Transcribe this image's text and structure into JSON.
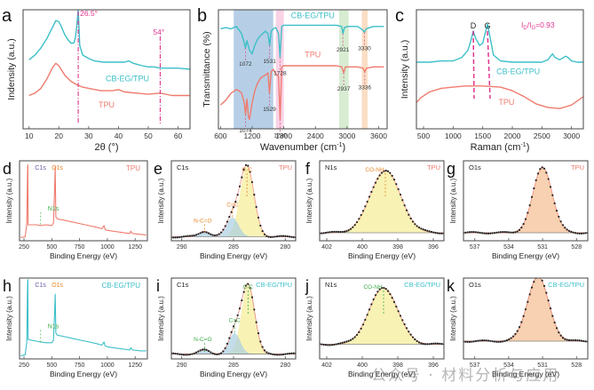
{
  "figure": {
    "watermark": "公众号 · 材料分析与应用"
  },
  "colors": {
    "cbeg": "#3cbfc8",
    "tpu": "#ef7b6e",
    "magenta": "#e0358f",
    "orange": "#e8892a",
    "green": "#3fae49",
    "purple": "#6a5aa8",
    "frame": "#555555",
    "fill_yellow": "#f7f0a8",
    "fill_blue": "#a9cfe3",
    "fill_peach": "#f6c9a4"
  },
  "chart_data": [
    {
      "panel": "a",
      "type": "line",
      "title": "",
      "xlabel": "2θ (°)",
      "ylabel": "Indensity (a.u.)",
      "xlim": [
        8,
        64
      ],
      "xticks": [
        10,
        20,
        30,
        40,
        50,
        60
      ],
      "series": [
        {
          "name": "CB-EG/TPU",
          "color_key": "cbeg",
          "x": [
            10,
            12,
            14,
            16,
            18,
            19,
            20,
            21,
            22,
            23,
            24,
            25,
            25.5,
            26,
            26.5,
            27,
            28,
            30,
            32,
            35,
            38,
            40,
            42,
            43.5,
            45,
            48,
            50,
            52,
            54,
            56,
            58,
            60,
            62,
            64
          ],
          "y": [
            0.58,
            0.62,
            0.68,
            0.76,
            0.86,
            0.91,
            0.9,
            0.85,
            0.79,
            0.75,
            0.72,
            0.72,
            0.76,
            0.86,
            1.0,
            0.7,
            0.62,
            0.59,
            0.57,
            0.56,
            0.56,
            0.56,
            0.56,
            0.57,
            0.55,
            0.53,
            0.52,
            0.52,
            0.51,
            0.51,
            0.51,
            0.51,
            0.505,
            0.5
          ]
        },
        {
          "name": "TPU",
          "color_key": "tpu",
          "x": [
            10,
            12,
            14,
            16,
            18,
            19,
            20,
            21,
            22,
            24,
            26,
            28,
            30,
            34,
            38,
            40,
            42,
            46,
            50,
            54,
            58,
            60,
            64
          ],
          "y": [
            0.28,
            0.3,
            0.34,
            0.42,
            0.52,
            0.55,
            0.53,
            0.49,
            0.45,
            0.4,
            0.37,
            0.35,
            0.34,
            0.32,
            0.32,
            0.33,
            0.31,
            0.3,
            0.29,
            0.3,
            0.28,
            0.28,
            0.28
          ]
        }
      ],
      "markers": [
        {
          "x": 26.5,
          "label": "26.5°"
        },
        {
          "x": 54,
          "label": "54°"
        }
      ],
      "series_labels": [
        {
          "text": "CB-EG/TPU",
          "color_key": "cbeg",
          "x": 43,
          "y": 0.4
        },
        {
          "text": "TPU",
          "color_key": "tpu",
          "x": 36,
          "y": 0.18
        }
      ]
    },
    {
      "panel": "b",
      "type": "line",
      "xlabel": "Wavenumber (cm⁻¹)",
      "ylabel": "Transmittance (%)",
      "xlim": [
        560,
        3760
      ],
      "xticks": [
        600,
        1200,
        1800,
        2400,
        3000,
        3600
      ],
      "bands": [
        {
          "from": 850,
          "to": 1600,
          "color": "#9dbfde"
        },
        {
          "from": 1650,
          "to": 1800,
          "color": "#f7c3de"
        },
        {
          "from": 2850,
          "to": 3030,
          "color": "#c9e6c1"
        },
        {
          "from": 3280,
          "to": 3390,
          "color": "#f9d3b1"
        }
      ],
      "series": [
        {
          "name": "CB-EG/TPU",
          "color_key": "cbeg",
          "x": [
            600,
            700,
            800,
            900,
            950,
            1000,
            1050,
            1072,
            1100,
            1150,
            1200,
            1250,
            1300,
            1350,
            1400,
            1450,
            1500,
            1531,
            1560,
            1600,
            1650,
            1700,
            1728,
            1760,
            1800,
            2000,
            2400,
            2800,
            2900,
            2921,
            2950,
            3000,
            3200,
            3300,
            3330,
            3360,
            3500,
            3700
          ],
          "y": [
            0.84,
            0.85,
            0.84,
            0.86,
            0.83,
            0.8,
            0.72,
            0.68,
            0.74,
            0.66,
            0.63,
            0.7,
            0.75,
            0.78,
            0.8,
            0.82,
            0.8,
            0.7,
            0.82,
            0.84,
            0.85,
            0.8,
            0.6,
            0.86,
            0.87,
            0.87,
            0.87,
            0.87,
            0.86,
            0.8,
            0.85,
            0.86,
            0.86,
            0.83,
            0.81,
            0.84,
            0.86,
            0.86
          ]
        },
        {
          "name": "TPU",
          "color_key": "tpu",
          "x": [
            600,
            700,
            800,
            900,
            950,
            1000,
            1050,
            1074,
            1100,
            1130,
            1150,
            1200,
            1250,
            1300,
            1350,
            1400,
            1450,
            1500,
            1529,
            1560,
            1600,
            1650,
            1700,
            1730,
            1760,
            1800,
            2000,
            2400,
            2800,
            2900,
            2937,
            2970,
            3000,
            3200,
            3300,
            3336,
            3370,
            3500,
            3700
          ],
          "y": [
            0.2,
            0.24,
            0.3,
            0.33,
            0.32,
            0.3,
            0.22,
            0.12,
            0.25,
            0.1,
            0.08,
            0.22,
            0.32,
            0.38,
            0.42,
            0.44,
            0.45,
            0.47,
            0.3,
            0.48,
            0.5,
            0.46,
            0.44,
            0.08,
            0.52,
            0.53,
            0.53,
            0.53,
            0.53,
            0.52,
            0.47,
            0.52,
            0.52,
            0.52,
            0.51,
            0.48,
            0.51,
            0.52,
            0.52
          ]
        }
      ],
      "peak_labels": [
        {
          "x": 1072,
          "text": "1072",
          "series": 0
        },
        {
          "x": 1531,
          "text": "1531",
          "series": 0
        },
        {
          "x": 1728,
          "text": "1728",
          "series": 0
        },
        {
          "x": 2921,
          "text": "2921",
          "series": 0
        },
        {
          "x": 3330,
          "text": "3330",
          "series": 0
        },
        {
          "x": 1074,
          "text": "1074",
          "series": 1
        },
        {
          "x": 1529,
          "text": "1529",
          "series": 1
        },
        {
          "x": 1730,
          "text": "1730",
          "series": 1
        },
        {
          "x": 2937,
          "text": "2937",
          "series": 1
        },
        {
          "x": 3336,
          "text": "3336",
          "series": 1
        }
      ],
      "series_labels": [
        {
          "text": "CB-EG/TPU",
          "color_key": "cbeg",
          "x": 2350,
          "y": 0.93
        },
        {
          "text": "TPU",
          "color_key": "tpu",
          "x": 2350,
          "y": 0.6
        }
      ]
    },
    {
      "panel": "c",
      "type": "line",
      "xlabel": "Raman (cm⁻¹)",
      "ylabel": "Intensity (a.u.)",
      "xlim": [
        380,
        3200
      ],
      "xticks": [
        500,
        1000,
        1500,
        2000,
        2500,
        3000
      ],
      "annotation": "I_D/I_G=0.93",
      "series": [
        {
          "name": "CB-EG/TPU",
          "color_key": "cbeg",
          "x": [
            380,
            600,
            800,
            1000,
            1150,
            1250,
            1300,
            1340,
            1380,
            1450,
            1500,
            1550,
            1580,
            1620,
            1680,
            1800,
            2000,
            2300,
            2500,
            2600,
            2680,
            2720,
            2800,
            2900,
            2940,
            3000,
            3100,
            3200
          ],
          "y": [
            0.56,
            0.56,
            0.57,
            0.57,
            0.6,
            0.66,
            0.74,
            0.82,
            0.76,
            0.7,
            0.72,
            0.82,
            0.88,
            0.78,
            0.62,
            0.57,
            0.56,
            0.56,
            0.56,
            0.58,
            0.63,
            0.6,
            0.58,
            0.61,
            0.6,
            0.57,
            0.56,
            0.56
          ]
        },
        {
          "name": "TPU",
          "color_key": "tpu",
          "x": [
            380,
            450,
            600,
            800,
            1000,
            1200,
            1500,
            1800,
            2000,
            2200,
            2400,
            2600,
            2800,
            3000,
            3200
          ],
          "y": [
            0.22,
            0.26,
            0.31,
            0.34,
            0.35,
            0.36,
            0.36,
            0.35,
            0.32,
            0.27,
            0.21,
            0.18,
            0.17,
            0.2,
            0.27
          ]
        }
      ],
      "peaks": [
        {
          "x": 1340,
          "label": "D"
        },
        {
          "x": 1580,
          "label": "G"
        }
      ],
      "series_labels": [
        {
          "text": "CB-EG/TPU",
          "color_key": "cbeg",
          "x": 2100,
          "y": 0.46
        },
        {
          "text": "TPU",
          "color_key": "tpu",
          "x": 1900,
          "y": 0.2
        }
      ]
    },
    {
      "panel": "d",
      "type": "line",
      "xlabel": "Binding Energy (eV)",
      "ylabel": "Intensity (a.u.)",
      "xlim": [
        210,
        1360
      ],
      "xticks": [
        250,
        500,
        750,
        1000,
        1250
      ],
      "sample": "TPU",
      "sample_color_key": "tpu",
      "series": [
        {
          "name": "TPU",
          "color_key": "tpu",
          "x": [
            220,
            260,
            275,
            283,
            285,
            287,
            295,
            320,
            360,
            400,
            450,
            500,
            515,
            525,
            531,
            537,
            545,
            560,
            600,
            700,
            800,
            900,
            950,
            970,
            980,
            1000,
            1100,
            1200,
            1210,
            1220,
            1230,
            1300,
            1350
          ],
          "y": [
            0.04,
            0.05,
            0.2,
            0.92,
            0.95,
            0.2,
            0.2,
            0.2,
            0.2,
            0.19,
            0.2,
            0.19,
            0.22,
            0.6,
            0.92,
            0.3,
            0.28,
            0.27,
            0.26,
            0.23,
            0.2,
            0.17,
            0.15,
            0.19,
            0.14,
            0.13,
            0.11,
            0.09,
            0.12,
            0.1,
            0.09,
            0.08,
            0.07
          ]
        }
      ],
      "peak_labels": [
        {
          "text": "C1s",
          "x": 285,
          "color_key": "purple"
        },
        {
          "text": "O1s",
          "x": 531,
          "color_key": "orange"
        },
        {
          "text": "N1s",
          "x": 400,
          "color_key": "green"
        }
      ]
    },
    {
      "panel": "e",
      "type": "area",
      "xlabel": "Binding Energy (eV)",
      "ylabel": "Intensity (a.u.)",
      "xlim": [
        291,
        279
      ],
      "xticks": [
        290,
        285,
        280
      ],
      "region": "C1s",
      "sample": "TPU",
      "sample_color_key": "tpu",
      "label_color_key": "orange",
      "components": [
        {
          "name": "C-C",
          "center": 283.7,
          "fwhm": 1.6,
          "amp": 0.88,
          "fill_key": "fill_yellow"
        },
        {
          "name": "C=C",
          "center": 285.1,
          "fwhm": 1.4,
          "amp": 0.24,
          "fill_key": "fill_blue"
        },
        {
          "name": "N-C=O",
          "center": 287.8,
          "fwhm": 1.2,
          "amp": 0.07,
          "fill_key": "fill_blue"
        }
      ],
      "baseline": 0.05
    },
    {
      "panel": "f",
      "type": "area",
      "xlabel": "Binding Energy (eV)",
      "ylabel": "Intensity (a.u.)",
      "xlim": [
        402.4,
        395.4
      ],
      "xticks": [
        402,
        400,
        398,
        396
      ],
      "region": "N1s",
      "sample": "TPU",
      "sample_color_key": "tpu",
      "label_color_key": "orange",
      "components": [
        {
          "name": "CO-NH",
          "center": 398.7,
          "fwhm": 2.0,
          "amp": 0.78,
          "fill_key": "fill_yellow"
        }
      ],
      "baseline": 0.1
    },
    {
      "panel": "g",
      "type": "area",
      "xlabel": "Binding Energy (eV)",
      "ylabel": "Intensity (a.u.)",
      "xlim": [
        538,
        527
      ],
      "xticks": [
        537,
        534,
        531,
        528
      ],
      "region": "O1s",
      "sample": "TPU",
      "sample_color_key": "tpu",
      "components": [
        {
          "name": "O1s",
          "center": 531.0,
          "fwhm": 2.0,
          "amp": 0.82,
          "fill_key": "fill_peach"
        }
      ],
      "baseline": 0.1
    },
    {
      "panel": "h",
      "type": "line",
      "xlabel": "Binding Energy (eV)",
      "ylabel": "Intensity (a.u.)",
      "xlim": [
        210,
        1360
      ],
      "xticks": [
        250,
        500,
        750,
        1000,
        1250
      ],
      "sample": "CB-EG/TPU",
      "sample_color_key": "cbeg",
      "series": [
        {
          "name": "CB-EG/TPU",
          "color_key": "cbeg",
          "x": [
            220,
            260,
            275,
            283,
            285,
            287,
            295,
            320,
            360,
            400,
            450,
            500,
            515,
            525,
            531,
            537,
            545,
            560,
            600,
            700,
            800,
            900,
            950,
            970,
            980,
            1000,
            1100,
            1200,
            1210,
            1220,
            1230,
            1300,
            1350
          ],
          "y": [
            0.04,
            0.05,
            0.2,
            0.95,
            0.98,
            0.24,
            0.24,
            0.23,
            0.22,
            0.21,
            0.2,
            0.2,
            0.23,
            0.55,
            0.8,
            0.32,
            0.3,
            0.29,
            0.28,
            0.25,
            0.22,
            0.19,
            0.17,
            0.21,
            0.16,
            0.15,
            0.13,
            0.11,
            0.14,
            0.12,
            0.11,
            0.1,
            0.1
          ]
        }
      ],
      "peak_labels": [
        {
          "text": "C1s",
          "x": 285,
          "color_key": "purple"
        },
        {
          "text": "O1s",
          "x": 531,
          "color_key": "orange"
        },
        {
          "text": "N1s",
          "x": 400,
          "color_key": "green"
        }
      ]
    },
    {
      "panel": "i",
      "type": "area",
      "xlabel": "Binding Energy (eV)",
      "ylabel": "Intensity (a.u.)",
      "xlim": [
        291,
        279
      ],
      "xticks": [
        290,
        285,
        280
      ],
      "region": "C1s",
      "sample": "CB-EG/TPU",
      "sample_color_key": "cbeg",
      "label_color_key": "green",
      "components": [
        {
          "name": "C-C",
          "center": 283.6,
          "fwhm": 1.5,
          "amp": 0.86,
          "fill_key": "fill_yellow"
        },
        {
          "name": "C=C",
          "center": 284.9,
          "fwhm": 1.3,
          "amp": 0.26,
          "fill_key": "fill_blue"
        },
        {
          "name": "N-C=O",
          "center": 287.8,
          "fwhm": 1.2,
          "amp": 0.05,
          "fill_key": "fill_blue"
        }
      ],
      "baseline": 0.06
    },
    {
      "panel": "j",
      "type": "area",
      "xlabel": "Binding Energy (eV)",
      "ylabel": "Intensity (a.u.)",
      "xlim": [
        402.4,
        395.4
      ],
      "xticks": [
        402,
        400,
        398,
        396
      ],
      "region": "N1s",
      "sample": "CB-EG/TPU",
      "sample_color_key": "cbeg",
      "label_color_key": "green",
      "components": [
        {
          "name": "CO-NH",
          "center": 398.8,
          "fwhm": 1.9,
          "amp": 0.7,
          "fill_key": "fill_yellow"
        }
      ],
      "baseline": 0.18
    },
    {
      "panel": "k",
      "type": "area",
      "xlabel": "Binding Energy (eV)",
      "ylabel": "Intensity (a.u.)",
      "xlim": [
        538,
        527
      ],
      "xticks": [
        537,
        534,
        531,
        528
      ],
      "region": "O1s",
      "sample": "CB-EG/TPU",
      "sample_color_key": "cbeg",
      "components": [
        {
          "name": "O1s",
          "center": 531.4,
          "fwhm": 2.2,
          "amp": 0.8,
          "fill_key": "fill_peach"
        }
      ],
      "baseline": 0.22
    }
  ]
}
